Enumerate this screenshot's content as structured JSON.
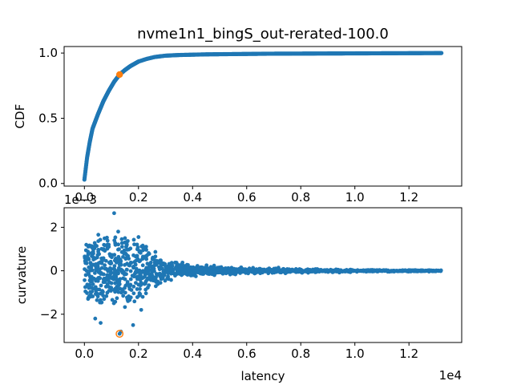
{
  "chart_data": [
    {
      "type": "scatter",
      "title": "nvme1n1_bingS_out-rerated-100.0",
      "xlabel": "",
      "ylabel": "CDF",
      "xlim": [
        -750,
        13950
      ],
      "ylim": [
        -0.02,
        1.05
      ],
      "xticks": [
        "0.0",
        "0.2",
        "0.4",
        "0.6",
        "0.8",
        "1.0",
        "1.2"
      ],
      "xtick_values": [
        0,
        2000,
        4000,
        6000,
        8000,
        10000,
        12000
      ],
      "yticks": [
        "0.0",
        "0.5",
        "1.0"
      ],
      "ytick_values": [
        0,
        0.5,
        1.0
      ],
      "grid": false,
      "series_color": "#1f77b4",
      "highlight_color": "#ff7f0e",
      "cdf_curve": [
        [
          0,
          0.03
        ],
        [
          100,
          0.2
        ],
        [
          200,
          0.32
        ],
        [
          300,
          0.42
        ],
        [
          500,
          0.53
        ],
        [
          700,
          0.63
        ],
        [
          900,
          0.71
        ],
        [
          1100,
          0.78
        ],
        [
          1300,
          0.835
        ],
        [
          1500,
          0.87
        ],
        [
          1700,
          0.9
        ],
        [
          2000,
          0.935
        ],
        [
          2300,
          0.955
        ],
        [
          2600,
          0.97
        ],
        [
          3000,
          0.98
        ],
        [
          3500,
          0.985
        ],
        [
          4500,
          0.99
        ],
        [
          6800,
          0.995
        ],
        [
          13200,
          1.0
        ]
      ],
      "highlight_point": [
        1300,
        0.835
      ]
    },
    {
      "type": "scatter",
      "title": "",
      "xlabel": "latency",
      "ylabel": "curvature",
      "xlim": [
        -750,
        13950
      ],
      "ylim": [
        -3.3,
        2.9
      ],
      "x_scale_label": "1e4",
      "y_scale_label": "1e−3",
      "xticks": [
        "0.0",
        "0.2",
        "0.4",
        "0.6",
        "0.8",
        "1.0",
        "1.2"
      ],
      "xtick_values": [
        0,
        2000,
        4000,
        6000,
        8000,
        10000,
        12000
      ],
      "yticks": [
        "−2",
        "0",
        "2"
      ],
      "ytick_values": [
        -2,
        0,
        2
      ],
      "grid": false,
      "series_color": "#1f77b4",
      "highlight_color": "#ff7f0e",
      "envelope": [
        [
          0,
          1.3
        ],
        [
          1000,
          1.6
        ],
        [
          2000,
          1.4
        ],
        [
          3000,
          0.45
        ],
        [
          4000,
          0.25
        ],
        [
          6000,
          0.15
        ],
        [
          8000,
          0.08
        ],
        [
          10000,
          0.05
        ],
        [
          13200,
          0.03
        ]
      ],
      "outliers": [
        [
          1100,
          2.65
        ],
        [
          2000,
          1.55
        ],
        [
          1250,
          1.8
        ],
        [
          1350,
          -2.8
        ],
        [
          1800,
          -2.5
        ],
        [
          600,
          -2.4
        ],
        [
          900,
          1.2
        ],
        [
          1500,
          1.5
        ],
        [
          400,
          -2.2
        ],
        [
          2100,
          -1.8
        ]
      ],
      "highlight_point": [
        1300,
        -2.9
      ],
      "point_count": 1400
    }
  ]
}
